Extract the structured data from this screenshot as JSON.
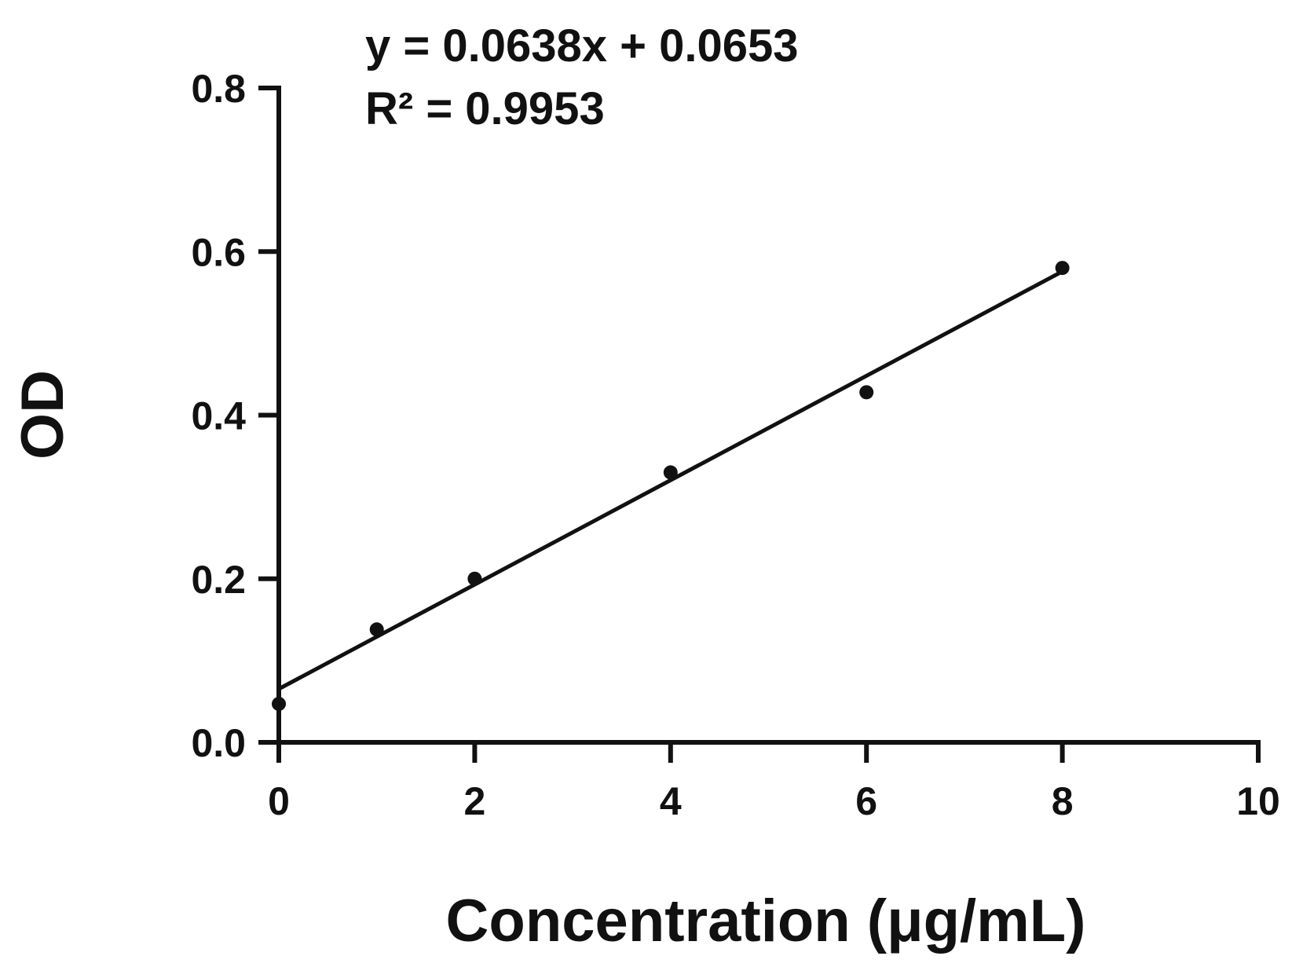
{
  "chart_data": {
    "type": "scatter",
    "title": "",
    "xlabel": "Concentration (μg/mL)",
    "ylabel": "OD",
    "xlim": [
      0,
      10
    ],
    "ylim": [
      0,
      0.8
    ],
    "x_ticks": [
      0,
      2,
      4,
      6,
      8,
      10
    ],
    "x_tick_labels": [
      "0",
      "2",
      "4",
      "6",
      "8",
      "10"
    ],
    "y_ticks": [
      0.0,
      0.2,
      0.4,
      0.6,
      0.8
    ],
    "y_tick_labels": [
      "0.0",
      "0.2",
      "0.4",
      "0.6",
      "0.8"
    ],
    "grid": false,
    "legend": "none",
    "series": [
      {
        "x": [
          0,
          1,
          2,
          4,
          6,
          8
        ],
        "y": [
          0.047,
          0.138,
          0.2,
          0.33,
          0.428,
          0.58
        ]
      }
    ],
    "trendline": {
      "slope": 0.0638,
      "intercept": 0.0653,
      "x_range": [
        0,
        8
      ]
    },
    "annotations": [
      "y = 0.0638x + 0.0653",
      "R² = 0.9953"
    ],
    "colors": {
      "marker": "#111111",
      "line": "#111111",
      "axis": "#111111"
    }
  }
}
